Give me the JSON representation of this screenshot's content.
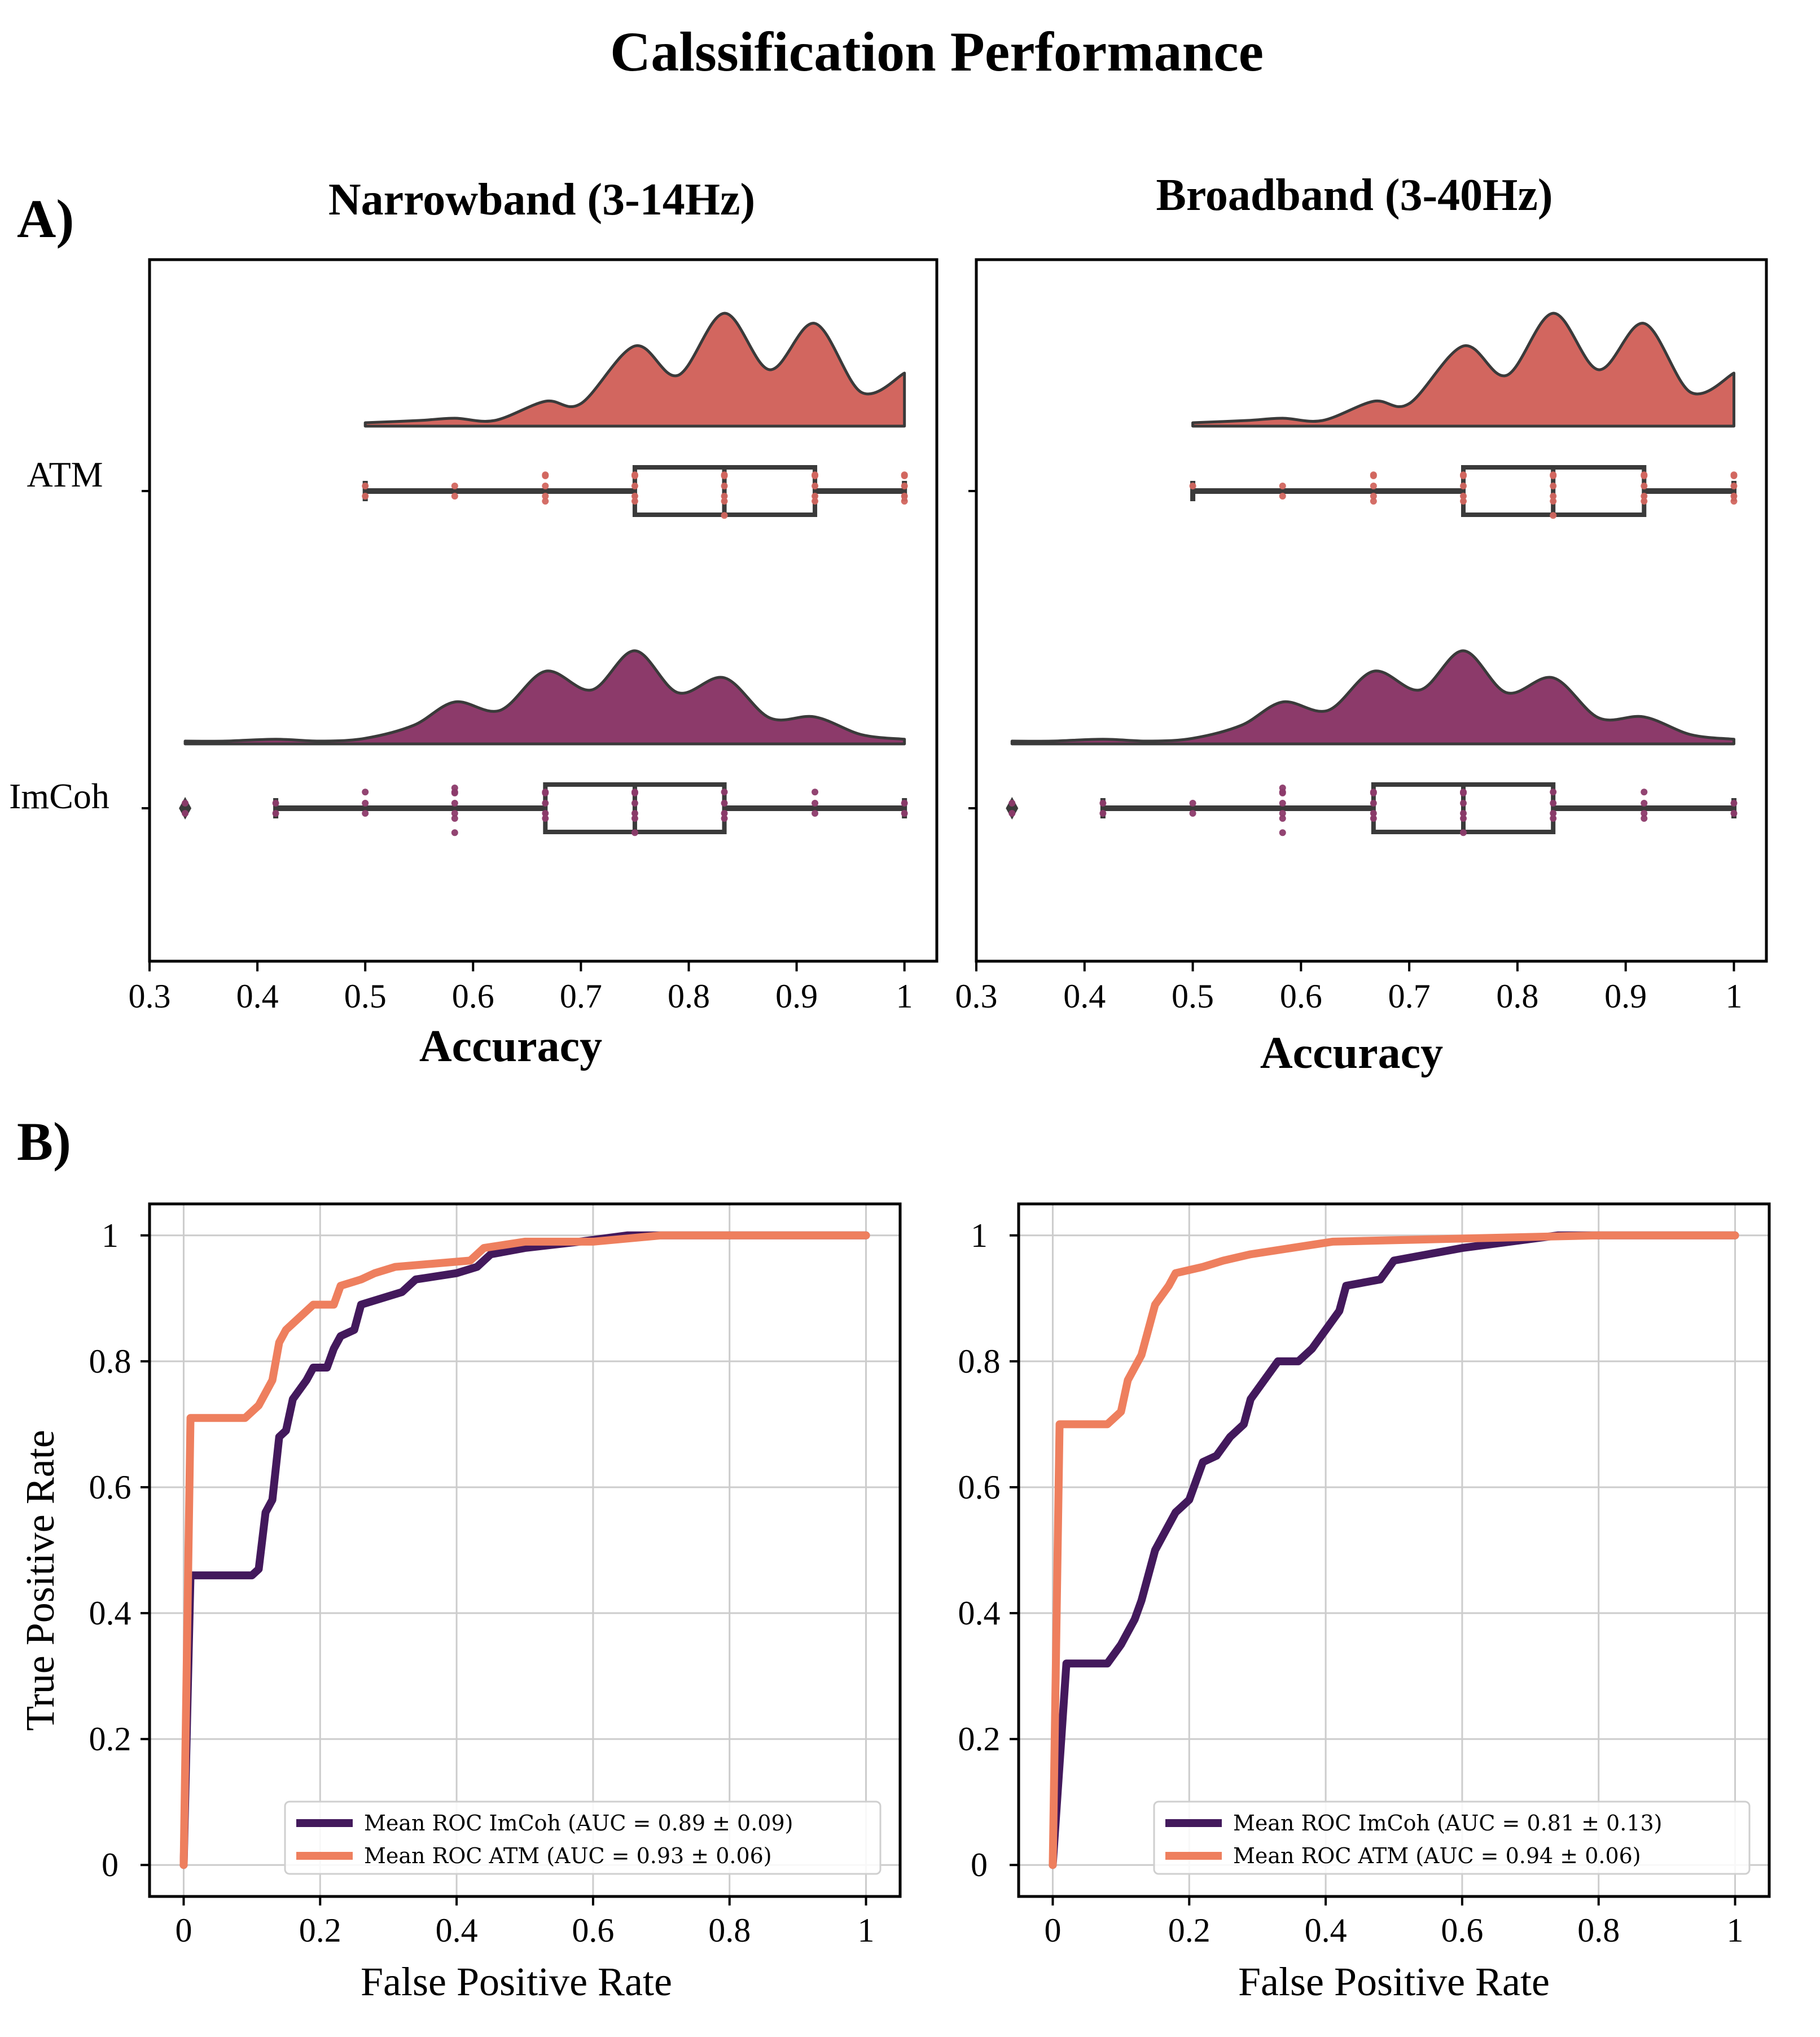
{
  "title": "Calssification Performance",
  "panel_labels": [
    "A)",
    "B)"
  ],
  "colors": {
    "atm_box": "#d2665f",
    "imcoh_box": "#8c3a6a",
    "atm_roc": "#ee7f5e",
    "imcoh_roc": "#43195c",
    "outline": "#3a3a3a",
    "grid": "#cccccc"
  },
  "chart_data": [
    {
      "type": "raincloud",
      "title": "Narrowband (3-14Hz)",
      "xlabel": "Accuracy",
      "xlim": [
        0.3,
        1.03
      ],
      "xticks": [
        "0.3",
        "0.4",
        "0.5",
        "0.6",
        "0.7",
        "0.8",
        "0.9",
        "1"
      ],
      "categories": [
        "ATM",
        "ImCoh"
      ],
      "series": [
        {
          "name": "ATM",
          "box": {
            "min": 0.5,
            "q1": 0.75,
            "median": 0.833,
            "q3": 0.917,
            "max": 1.0,
            "outliers": []
          },
          "points": [
            0.5,
            0.5,
            0.583,
            0.583,
            0.667,
            0.667,
            0.667,
            0.667,
            0.667,
            0.75,
            0.75,
            0.75,
            0.75,
            0.75,
            0.833,
            0.833,
            0.833,
            0.833,
            0.833,
            0.833,
            0.917,
            0.917,
            0.917,
            0.917,
            0.917,
            1.0,
            1.0,
            1.0,
            1.0,
            1.0
          ],
          "density": [
            [
              0.5,
              0.03
            ],
            [
              0.55,
              0.05
            ],
            [
              0.583,
              0.07
            ],
            [
              0.62,
              0.05
            ],
            [
              0.667,
              0.22
            ],
            [
              0.7,
              0.2
            ],
            [
              0.75,
              0.71
            ],
            [
              0.79,
              0.45
            ],
            [
              0.833,
              1.0
            ],
            [
              0.875,
              0.5
            ],
            [
              0.917,
              0.91
            ],
            [
              0.96,
              0.3
            ],
            [
              1.0,
              0.47
            ]
          ]
        },
        {
          "name": "ImCoh",
          "box": {
            "min": 0.417,
            "q1": 0.667,
            "median": 0.75,
            "q3": 0.833,
            "max": 1.0,
            "outliers": [
              0.333
            ]
          },
          "points": [
            0.333,
            0.333,
            0.417,
            0.417,
            0.5,
            0.5,
            0.5,
            0.583,
            0.583,
            0.583,
            0.583,
            0.583,
            0.583,
            0.583,
            0.667,
            0.667,
            0.667,
            0.667,
            0.667,
            0.75,
            0.75,
            0.75,
            0.75,
            0.75,
            0.75,
            0.833,
            0.833,
            0.833,
            0.833,
            0.917,
            0.917,
            0.917,
            1.0,
            1.0
          ],
          "density": [
            [
              0.333,
              0.03
            ],
            [
              0.37,
              0.03
            ],
            [
              0.417,
              0.05
            ],
            [
              0.46,
              0.03
            ],
            [
              0.5,
              0.06
            ],
            [
              0.545,
              0.2
            ],
            [
              0.583,
              0.45
            ],
            [
              0.625,
              0.36
            ],
            [
              0.667,
              0.78
            ],
            [
              0.71,
              0.58
            ],
            [
              0.75,
              1.0
            ],
            [
              0.79,
              0.55
            ],
            [
              0.833,
              0.71
            ],
            [
              0.875,
              0.28
            ],
            [
              0.917,
              0.29
            ],
            [
              0.96,
              0.1
            ],
            [
              1.0,
              0.05
            ]
          ]
        }
      ]
    },
    {
      "type": "raincloud",
      "title": "Broadband (3-40Hz)",
      "xlabel": "Accuracy",
      "xlim": [
        0.3,
        1.03
      ],
      "xticks": [
        "0.3",
        "0.4",
        "0.5",
        "0.6",
        "0.7",
        "0.8",
        "0.9",
        "1"
      ],
      "categories": [
        "ATM",
        "ImCoh"
      ],
      "series": [
        {
          "name": "ATM",
          "box": {
            "min": 0.5,
            "q1": 0.75,
            "median": 0.833,
            "q3": 0.917,
            "max": 1.0,
            "outliers": []
          },
          "points": [
            0.5,
            0.583,
            0.583,
            0.667,
            0.667,
            0.667,
            0.667,
            0.667,
            0.75,
            0.75,
            0.75,
            0.75,
            0.75,
            0.833,
            0.833,
            0.833,
            0.833,
            0.833,
            0.833,
            0.917,
            0.917,
            0.917,
            0.917,
            0.917,
            1.0,
            1.0,
            1.0,
            1.0,
            1.0
          ],
          "density": [
            [
              0.5,
              0.03
            ],
            [
              0.55,
              0.05
            ],
            [
              0.583,
              0.07
            ],
            [
              0.62,
              0.05
            ],
            [
              0.667,
              0.22
            ],
            [
              0.7,
              0.2
            ],
            [
              0.75,
              0.71
            ],
            [
              0.79,
              0.45
            ],
            [
              0.833,
              1.0
            ],
            [
              0.875,
              0.5
            ],
            [
              0.917,
              0.91
            ],
            [
              0.96,
              0.3
            ],
            [
              1.0,
              0.47
            ]
          ]
        },
        {
          "name": "ImCoh",
          "box": {
            "min": 0.417,
            "q1": 0.667,
            "median": 0.75,
            "q3": 0.833,
            "max": 1.0,
            "outliers": [
              0.333
            ]
          },
          "points": [
            0.333,
            0.333,
            0.417,
            0.417,
            0.5,
            0.5,
            0.583,
            0.583,
            0.583,
            0.583,
            0.583,
            0.583,
            0.583,
            0.667,
            0.667,
            0.667,
            0.667,
            0.667,
            0.75,
            0.75,
            0.75,
            0.75,
            0.75,
            0.75,
            0.833,
            0.833,
            0.833,
            0.833,
            0.917,
            0.917,
            0.917,
            0.917,
            1.0,
            1.0
          ],
          "density": [
            [
              0.333,
              0.03
            ],
            [
              0.37,
              0.03
            ],
            [
              0.417,
              0.05
            ],
            [
              0.46,
              0.03
            ],
            [
              0.5,
              0.06
            ],
            [
              0.545,
              0.2
            ],
            [
              0.583,
              0.45
            ],
            [
              0.625,
              0.36
            ],
            [
              0.667,
              0.78
            ],
            [
              0.71,
              0.58
            ],
            [
              0.75,
              1.0
            ],
            [
              0.79,
              0.55
            ],
            [
              0.833,
              0.71
            ],
            [
              0.875,
              0.28
            ],
            [
              0.917,
              0.29
            ],
            [
              0.96,
              0.1
            ],
            [
              1.0,
              0.05
            ]
          ]
        }
      ]
    },
    {
      "type": "line",
      "xlabel": "False Positive Rate",
      "ylabel": "True Positive Rate",
      "xlim": [
        -0.05,
        1.05
      ],
      "ylim": [
        -0.05,
        1.05
      ],
      "xticks": [
        "0",
        "0.2",
        "0.4",
        "0.6",
        "0.8",
        "1"
      ],
      "yticks": [
        "0",
        "0.2",
        "0.4",
        "0.6",
        "0.8",
        "1"
      ],
      "grid": true,
      "legend_position": "bottom-right",
      "series": [
        {
          "name": "Mean ROC ImCoh (AUC = 0.89 ± 0.09)",
          "points": [
            [
              0,
              0
            ],
            [
              0.01,
              0.46
            ],
            [
              0.1,
              0.46
            ],
            [
              0.11,
              0.47
            ],
            [
              0.12,
              0.56
            ],
            [
              0.13,
              0.58
            ],
            [
              0.14,
              0.68
            ],
            [
              0.15,
              0.69
            ],
            [
              0.16,
              0.74
            ],
            [
              0.18,
              0.77
            ],
            [
              0.19,
              0.79
            ],
            [
              0.21,
              0.79
            ],
            [
              0.22,
              0.82
            ],
            [
              0.23,
              0.84
            ],
            [
              0.25,
              0.85
            ],
            [
              0.26,
              0.89
            ],
            [
              0.29,
              0.9
            ],
            [
              0.32,
              0.91
            ],
            [
              0.34,
              0.93
            ],
            [
              0.4,
              0.94
            ],
            [
              0.43,
              0.95
            ],
            [
              0.45,
              0.97
            ],
            [
              0.5,
              0.98
            ],
            [
              0.58,
              0.99
            ],
            [
              0.65,
              1.0
            ],
            [
              1.0,
              1.0
            ]
          ]
        },
        {
          "name": "Mean ROC ATM (AUC = 0.93 ± 0.06)",
          "points": [
            [
              0,
              0
            ],
            [
              0.01,
              0.71
            ],
            [
              0.09,
              0.71
            ],
            [
              0.11,
              0.73
            ],
            [
              0.12,
              0.75
            ],
            [
              0.13,
              0.77
            ],
            [
              0.14,
              0.83
            ],
            [
              0.15,
              0.85
            ],
            [
              0.16,
              0.86
            ],
            [
              0.18,
              0.88
            ],
            [
              0.19,
              0.89
            ],
            [
              0.22,
              0.89
            ],
            [
              0.23,
              0.92
            ],
            [
              0.26,
              0.93
            ],
            [
              0.28,
              0.94
            ],
            [
              0.31,
              0.95
            ],
            [
              0.42,
              0.96
            ],
            [
              0.44,
              0.98
            ],
            [
              0.5,
              0.99
            ],
            [
              0.6,
              0.99
            ],
            [
              0.7,
              1.0
            ],
            [
              1.0,
              1.0
            ]
          ]
        }
      ]
    },
    {
      "type": "line",
      "xlabel": "False Positive Rate",
      "xlim": [
        -0.05,
        1.05
      ],
      "ylim": [
        -0.05,
        1.05
      ],
      "xticks": [
        "0",
        "0.2",
        "0.4",
        "0.6",
        "0.8",
        "1"
      ],
      "yticks": [
        "0",
        "0.2",
        "0.4",
        "0.6",
        "0.8",
        "1"
      ],
      "grid": true,
      "legend_position": "bottom-right",
      "series": [
        {
          "name": "Mean ROC ImCoh (AUC = 0.81 ± 0.13)",
          "points": [
            [
              0,
              0
            ],
            [
              0.02,
              0.32
            ],
            [
              0.08,
              0.32
            ],
            [
              0.1,
              0.35
            ],
            [
              0.12,
              0.39
            ],
            [
              0.13,
              0.42
            ],
            [
              0.15,
              0.5
            ],
            [
              0.16,
              0.52
            ],
            [
              0.18,
              0.56
            ],
            [
              0.2,
              0.58
            ],
            [
              0.21,
              0.61
            ],
            [
              0.22,
              0.64
            ],
            [
              0.24,
              0.65
            ],
            [
              0.26,
              0.68
            ],
            [
              0.28,
              0.7
            ],
            [
              0.29,
              0.74
            ],
            [
              0.31,
              0.77
            ],
            [
              0.33,
              0.8
            ],
            [
              0.36,
              0.8
            ],
            [
              0.38,
              0.82
            ],
            [
              0.4,
              0.85
            ],
            [
              0.42,
              0.88
            ],
            [
              0.43,
              0.92
            ],
            [
              0.48,
              0.93
            ],
            [
              0.5,
              0.96
            ],
            [
              0.55,
              0.97
            ],
            [
              0.6,
              0.98
            ],
            [
              0.67,
              0.99
            ],
            [
              0.74,
              1.0
            ],
            [
              1.0,
              1.0
            ]
          ]
        },
        {
          "name": "Mean ROC ATM (AUC = 0.94 ± 0.06)",
          "points": [
            [
              0,
              0
            ],
            [
              0.01,
              0.7
            ],
            [
              0.08,
              0.7
            ],
            [
              0.1,
              0.72
            ],
            [
              0.11,
              0.77
            ],
            [
              0.13,
              0.81
            ],
            [
              0.14,
              0.85
            ],
            [
              0.15,
              0.89
            ],
            [
              0.17,
              0.92
            ],
            [
              0.18,
              0.94
            ],
            [
              0.22,
              0.95
            ],
            [
              0.25,
              0.96
            ],
            [
              0.29,
              0.97
            ],
            [
              0.35,
              0.98
            ],
            [
              0.41,
              0.99
            ],
            [
              0.6,
              0.995
            ],
            [
              0.8,
              1.0
            ],
            [
              1.0,
              1.0
            ]
          ]
        }
      ]
    }
  ]
}
